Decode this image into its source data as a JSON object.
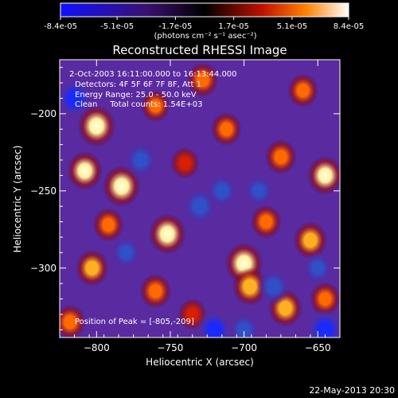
{
  "colorbar": {
    "tick_labels": [
      "-8.4e-05",
      "-5.1e-05",
      "-1.7e-05",
      "1.7e-05",
      "5.1e-05",
      "8.4e-05"
    ],
    "unit_label": "(photons cm⁻² s⁻¹ asec⁻²)",
    "range": [
      -8.4e-05,
      8.4e-05
    ]
  },
  "chart_data": {
    "type": "heatmap",
    "title": "Reconstructed RHESSI Image",
    "xlabel": "Heliocentric X (arcsec)",
    "ylabel": "Heliocentric Y (arcsec)",
    "xlim": [
      -825,
      -635
    ],
    "ylim": [
      -345,
      -165
    ],
    "x_ticks": [
      -800,
      -750,
      -700,
      -650
    ],
    "y_ticks": [
      -200,
      -250,
      -300
    ],
    "x_tick_labels": [
      "−800",
      "−750",
      "−700",
      "−650"
    ],
    "y_tick_labels": [
      "−200",
      "−250",
      "−300"
    ],
    "peak": [
      -805,
      -209
    ],
    "annotations": [
      "2-Oct-2003 16:11:00.000 to 16:13:44.000",
      "Detectors: 4F 5F 6F 7F 8F, Att 1",
      "Energy Range: 25.0 - 50.0 keV",
      "Clean     Total counts: 1.54E+03"
    ],
    "peak_label": "Position of Peak = [-805,-209]",
    "blobs": [
      {
        "x": -800,
        "y": -208,
        "v": 1.0
      },
      {
        "x": -808,
        "y": -237,
        "v": 0.85
      },
      {
        "x": -783,
        "y": -247,
        "v": 1.0
      },
      {
        "x": -792,
        "y": -272,
        "v": 0.55
      },
      {
        "x": -803,
        "y": -300,
        "v": 0.7
      },
      {
        "x": -818,
        "y": -335,
        "v": 0.6
      },
      {
        "x": -752,
        "y": -278,
        "v": 0.95
      },
      {
        "x": -760,
        "y": -315,
        "v": 0.6
      },
      {
        "x": -760,
        "y": -195,
        "v": 0.45
      },
      {
        "x": -740,
        "y": -232,
        "v": 0.4
      },
      {
        "x": -700,
        "y": -297,
        "v": 1.0
      },
      {
        "x": -696,
        "y": -312,
        "v": 0.8
      },
      {
        "x": -685,
        "y": -270,
        "v": 0.55
      },
      {
        "x": -712,
        "y": -210,
        "v": 0.55
      },
      {
        "x": -728,
        "y": -178,
        "v": 0.6
      },
      {
        "x": -660,
        "y": -185,
        "v": 0.55
      },
      {
        "x": -645,
        "y": -240,
        "v": 0.85
      },
      {
        "x": -675,
        "y": -228,
        "v": 0.6
      },
      {
        "x": -655,
        "y": -282,
        "v": 0.75
      },
      {
        "x": -672,
        "y": -326,
        "v": 0.75
      },
      {
        "x": -645,
        "y": -320,
        "v": 0.55
      },
      {
        "x": -735,
        "y": -330,
        "v": 0.4
      },
      {
        "x": -770,
        "y": -230,
        "v": -0.7
      },
      {
        "x": -815,
        "y": -190,
        "v": -0.9
      },
      {
        "x": -730,
        "y": -260,
        "v": -0.8
      },
      {
        "x": -715,
        "y": -250,
        "v": -0.6
      },
      {
        "x": -680,
        "y": -312,
        "v": -0.7
      },
      {
        "x": -645,
        "y": -340,
        "v": -1.0
      },
      {
        "x": -720,
        "y": -340,
        "v": -0.9
      },
      {
        "x": -700,
        "y": -340,
        "v": -0.6
      },
      {
        "x": -690,
        "y": -250,
        "v": -0.5
      },
      {
        "x": -780,
        "y": -290,
        "v": -0.55
      },
      {
        "x": -650,
        "y": -300,
        "v": -0.5
      }
    ]
  },
  "timestamp": "22-May-2013 20:30"
}
